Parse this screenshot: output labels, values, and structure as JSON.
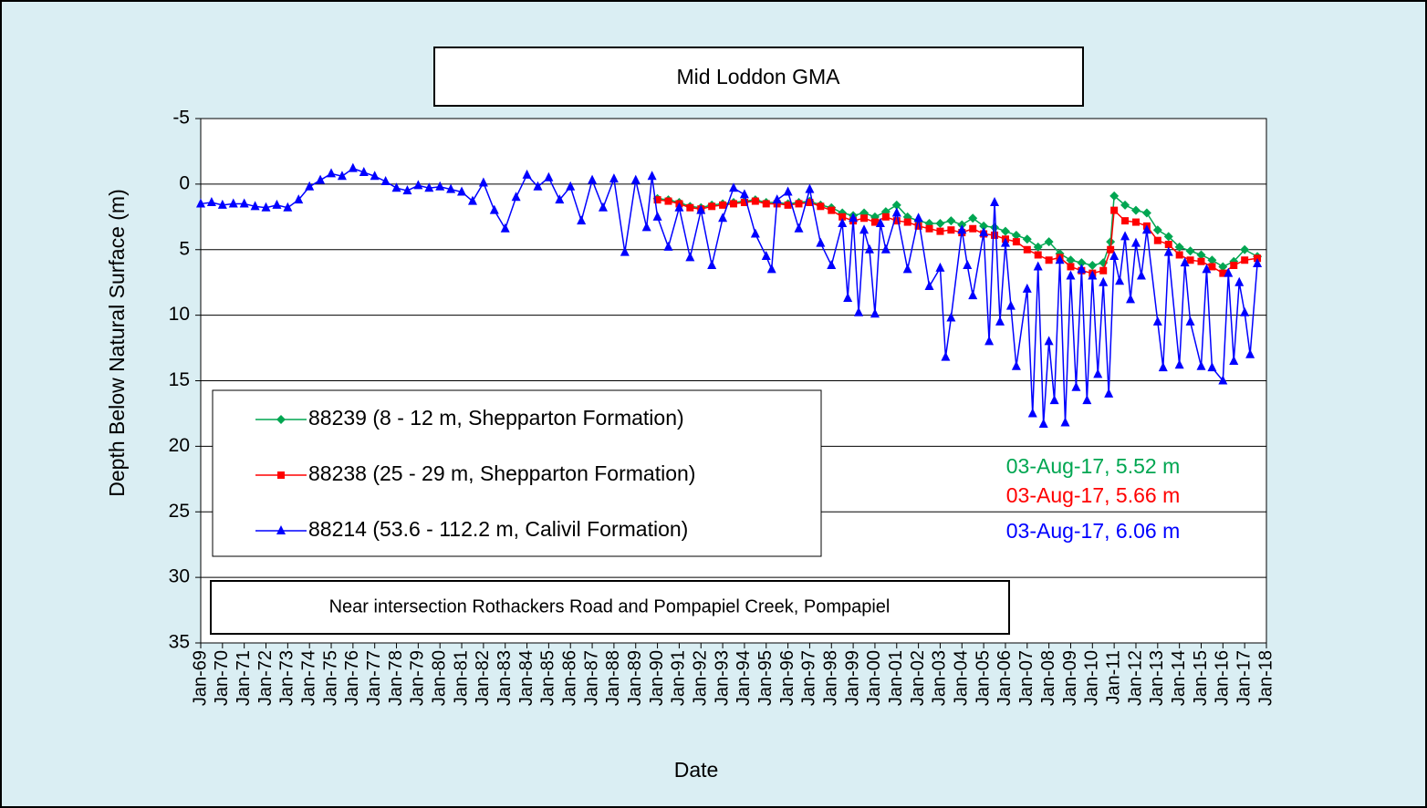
{
  "chart_data": {
    "type": "line",
    "title": "Mid Loddon GMA",
    "subtitle": "Near intersection Rothackers Road and Pompapiel Creek, Pompapiel",
    "x_label": "Date",
    "y_label": "Depth Below Natural Surface (m)",
    "ylim": [
      -5,
      35
    ],
    "y_inverted": true,
    "yticks": [
      -5,
      0,
      5,
      10,
      15,
      20,
      25,
      30,
      35
    ],
    "grid": true,
    "xlim": [
      "1969-01",
      "2018-01"
    ],
    "xticks": [
      {
        "value": "1969-01",
        "label": "Jan-69"
      },
      {
        "value": "1970-01",
        "label": "Jan-70"
      },
      {
        "value": "1971-01",
        "label": "Jan-71"
      },
      {
        "value": "1972-01",
        "label": "Jan-72"
      },
      {
        "value": "1973-01",
        "label": "Jan-73"
      },
      {
        "value": "1974-01",
        "label": "Jan-74"
      },
      {
        "value": "1975-01",
        "label": "Jan-75"
      },
      {
        "value": "1976-01",
        "label": "Jan-76"
      },
      {
        "value": "1977-01",
        "label": "Jan-77"
      },
      {
        "value": "1978-01",
        "label": "Jan-78"
      },
      {
        "value": "1979-01",
        "label": "Jan-79"
      },
      {
        "value": "1980-01",
        "label": "Jan-80"
      },
      {
        "value": "1981-01",
        "label": "Jan-81"
      },
      {
        "value": "1982-01",
        "label": "Jan-82"
      },
      {
        "value": "1983-01",
        "label": "Jan-83"
      },
      {
        "value": "1984-01",
        "label": "Jan-84"
      },
      {
        "value": "1985-01",
        "label": "Jan-85"
      },
      {
        "value": "1986-01",
        "label": "Jan-86"
      },
      {
        "value": "1987-01",
        "label": "Jan-87"
      },
      {
        "value": "1988-01",
        "label": "Jan-88"
      },
      {
        "value": "1989-01",
        "label": "Jan-89"
      },
      {
        "value": "1990-01",
        "label": "Jan-90"
      },
      {
        "value": "1991-01",
        "label": "Jan-91"
      },
      {
        "value": "1992-01",
        "label": "Jan-92"
      },
      {
        "value": "1993-01",
        "label": "Jan-93"
      },
      {
        "value": "1994-01",
        "label": "Jan-94"
      },
      {
        "value": "1995-01",
        "label": "Jan-95"
      },
      {
        "value": "1996-01",
        "label": "Jan-96"
      },
      {
        "value": "1997-01",
        "label": "Jan-97"
      },
      {
        "value": "1998-01",
        "label": "Jan-98"
      },
      {
        "value": "1999-01",
        "label": "Jan-99"
      },
      {
        "value": "2000-01",
        "label": "Jan-00"
      },
      {
        "value": "2001-01",
        "label": "Jan-01"
      },
      {
        "value": "2002-01",
        "label": "Jan-02"
      },
      {
        "value": "2003-01",
        "label": "Jan-03"
      },
      {
        "value": "2004-01",
        "label": "Jan-04"
      },
      {
        "value": "2005-01",
        "label": "Jan-05"
      },
      {
        "value": "2006-01",
        "label": "Jan-06"
      },
      {
        "value": "2007-01",
        "label": "Jan-07"
      },
      {
        "value": "2008-01",
        "label": "Jan-08"
      },
      {
        "value": "2009-01",
        "label": "Jan-09"
      },
      {
        "value": "2010-01",
        "label": "Jan-10"
      },
      {
        "value": "2011-01",
        "label": "Jan-11"
      },
      {
        "value": "2012-01",
        "label": "Jan-12"
      },
      {
        "value": "2013-01",
        "label": "Jan-13"
      },
      {
        "value": "2014-01",
        "label": "Jan-14"
      },
      {
        "value": "2015-01",
        "label": "Jan-15"
      },
      {
        "value": "2016-01",
        "label": "Jan-16"
      },
      {
        "value": "2017-01",
        "label": "Jan-17"
      },
      {
        "value": "2018-01",
        "label": "Jan-18"
      }
    ],
    "series": [
      {
        "name": "88239 (8 - 12 m, Shepparton Formation)",
        "color": "#00a651",
        "marker": "diamond",
        "x": [
          "1990-01",
          "1990-07",
          "1991-01",
          "1991-07",
          "1992-01",
          "1992-07",
          "1993-01",
          "1993-07",
          "1994-01",
          "1994-07",
          "1995-01",
          "1995-07",
          "1996-01",
          "1996-07",
          "1997-01",
          "1997-07",
          "1998-01",
          "1998-07",
          "1999-01",
          "1999-07",
          "2000-01",
          "2000-07",
          "2001-01",
          "2001-07",
          "2002-01",
          "2002-07",
          "2003-01",
          "2003-07",
          "2004-01",
          "2004-07",
          "2005-01",
          "2005-07",
          "2006-01",
          "2006-07",
          "2007-01",
          "2007-07",
          "2008-01",
          "2008-07",
          "2009-01",
          "2009-07",
          "2010-01",
          "2010-07",
          "2010-11",
          "2011-01",
          "2011-07",
          "2012-01",
          "2012-07",
          "2013-01",
          "2013-07",
          "2014-01",
          "2014-07",
          "2015-01",
          "2015-07",
          "2016-01",
          "2016-07",
          "2017-01",
          "2017-08"
        ],
        "values": [
          1.1,
          1.2,
          1.4,
          1.7,
          1.8,
          1.6,
          1.5,
          1.4,
          1.3,
          1.2,
          1.4,
          1.4,
          1.5,
          1.4,
          1.3,
          1.6,
          1.8,
          2.2,
          2.4,
          2.2,
          2.5,
          2.1,
          1.6,
          2.5,
          2.8,
          3.0,
          3.0,
          2.8,
          3.1,
          2.6,
          3.2,
          3.3,
          3.6,
          3.9,
          4.2,
          4.8,
          4.4,
          5.3,
          5.8,
          6.0,
          6.2,
          6.0,
          4.4,
          0.9,
          1.6,
          2.0,
          2.2,
          3.5,
          4.0,
          4.8,
          5.1,
          5.4,
          5.8,
          6.3,
          5.9,
          5.0,
          5.52
        ]
      },
      {
        "name": "88238 (25 - 29 m, Shepparton Formation)",
        "color": "#ff0000",
        "marker": "square",
        "x": [
          "1990-01",
          "1990-07",
          "1991-01",
          "1991-07",
          "1992-01",
          "1992-07",
          "1993-01",
          "1993-07",
          "1994-01",
          "1994-07",
          "1995-01",
          "1995-07",
          "1996-01",
          "1996-07",
          "1997-01",
          "1997-07",
          "1998-01",
          "1998-07",
          "1999-01",
          "1999-07",
          "2000-01",
          "2000-07",
          "2001-01",
          "2001-07",
          "2002-01",
          "2002-07",
          "2003-01",
          "2003-07",
          "2004-01",
          "2004-07",
          "2005-01",
          "2005-07",
          "2006-01",
          "2006-07",
          "2007-01",
          "2007-07",
          "2008-01",
          "2008-07",
          "2009-01",
          "2009-07",
          "2010-01",
          "2010-07",
          "2010-11",
          "2011-01",
          "2011-07",
          "2012-01",
          "2012-07",
          "2013-01",
          "2013-07",
          "2014-01",
          "2014-07",
          "2015-01",
          "2015-07",
          "2016-01",
          "2016-07",
          "2017-01",
          "2017-08"
        ],
        "values": [
          1.2,
          1.3,
          1.5,
          1.8,
          1.9,
          1.7,
          1.6,
          1.5,
          1.4,
          1.3,
          1.5,
          1.5,
          1.6,
          1.5,
          1.4,
          1.7,
          2.0,
          2.5,
          2.8,
          2.6,
          2.9,
          2.5,
          2.8,
          2.9,
          3.2,
          3.4,
          3.6,
          3.5,
          3.7,
          3.4,
          3.8,
          3.9,
          4.2,
          4.4,
          5.0,
          5.4,
          5.8,
          5.6,
          6.3,
          6.6,
          6.8,
          6.6,
          5.0,
          2.0,
          2.8,
          2.9,
          3.2,
          4.3,
          4.6,
          5.4,
          5.8,
          5.9,
          6.3,
          6.8,
          6.2,
          5.8,
          5.66
        ]
      },
      {
        "name": "88214 (53.6 - 112.2 m, Calivil Formation)",
        "color": "#0000ff",
        "marker": "triangle",
        "x": [
          "1969-01",
          "1969-07",
          "1970-01",
          "1970-07",
          "1971-01",
          "1971-07",
          "1972-01",
          "1972-07",
          "1973-01",
          "1973-07",
          "1974-01",
          "1974-07",
          "1975-01",
          "1975-07",
          "1976-01",
          "1976-07",
          "1977-01",
          "1977-07",
          "1978-01",
          "1978-07",
          "1979-01",
          "1979-07",
          "1980-01",
          "1980-07",
          "1981-01",
          "1981-07",
          "1982-01",
          "1982-07",
          "1983-01",
          "1983-07",
          "1984-01",
          "1984-07",
          "1985-01",
          "1985-07",
          "1986-01",
          "1986-07",
          "1987-01",
          "1987-07",
          "1988-01",
          "1988-07",
          "1989-01",
          "1989-07",
          "1989-10",
          "1990-01",
          "1990-07",
          "1991-01",
          "1991-07",
          "1992-01",
          "1992-07",
          "1993-01",
          "1993-07",
          "1994-01",
          "1994-07",
          "1995-01",
          "1995-04",
          "1995-07",
          "1996-01",
          "1996-07",
          "1997-01",
          "1997-07",
          "1998-01",
          "1998-07",
          "1998-10",
          "1999-01",
          "1999-04",
          "1999-07",
          "1999-10",
          "2000-01",
          "2000-04",
          "2000-07",
          "2001-01",
          "2001-07",
          "2002-01",
          "2002-07",
          "2003-01",
          "2003-04",
          "2003-07",
          "2004-01",
          "2004-04",
          "2004-07",
          "2005-01",
          "2005-04",
          "2005-07",
          "2005-10",
          "2006-01",
          "2006-04",
          "2006-07",
          "2007-01",
          "2007-04",
          "2007-07",
          "2007-10",
          "2008-01",
          "2008-04",
          "2008-07",
          "2008-10",
          "2009-01",
          "2009-04",
          "2009-07",
          "2009-10",
          "2010-01",
          "2010-04",
          "2010-07",
          "2010-10",
          "2011-01",
          "2011-04",
          "2011-07",
          "2011-10",
          "2012-01",
          "2012-04",
          "2012-07",
          "2013-01",
          "2013-04",
          "2013-07",
          "2014-01",
          "2014-04",
          "2014-07",
          "2015-01",
          "2015-04",
          "2015-07",
          "2016-01",
          "2016-04",
          "2016-07",
          "2016-10",
          "2017-01",
          "2017-04",
          "2017-08"
        ],
        "values": [
          1.5,
          1.4,
          1.6,
          1.5,
          1.5,
          1.7,
          1.8,
          1.6,
          1.8,
          1.2,
          0.2,
          -0.3,
          -0.8,
          -0.6,
          -1.2,
          -0.9,
          -0.6,
          -0.2,
          0.3,
          0.5,
          0.1,
          0.3,
          0.2,
          0.4,
          0.6,
          1.3,
          -0.1,
          2.0,
          3.4,
          1.0,
          -0.7,
          0.2,
          -0.5,
          1.2,
          0.2,
          2.8,
          -0.3,
          1.8,
          -0.4,
          5.2,
          -0.3,
          3.3,
          -0.6,
          2.5,
          4.8,
          1.8,
          5.6,
          2.0,
          6.2,
          2.6,
          0.3,
          0.8,
          3.8,
          5.5,
          6.5,
          1.2,
          0.6,
          3.4,
          0.4,
          4.5,
          6.2,
          3.0,
          8.7,
          2.6,
          9.8,
          3.5,
          5.0,
          9.9,
          3.0,
          5.0,
          2.2,
          6.5,
          2.6,
          7.8,
          6.4,
          13.2,
          10.2,
          3.5,
          6.2,
          8.5,
          3.7,
          12.0,
          1.4,
          10.5,
          4.5,
          9.3,
          13.9,
          8.0,
          17.5,
          6.3,
          18.3,
          12.0,
          16.5,
          5.8,
          18.2,
          7.0,
          15.5,
          6.5,
          16.5,
          7.0,
          14.5,
          7.5,
          16.0,
          5.5,
          7.4,
          4.0,
          8.8,
          4.5,
          7.0,
          3.5,
          10.5,
          14.0,
          5.2,
          13.8,
          6.0,
          10.5,
          13.9,
          6.5,
          14.0,
          15.0,
          6.8,
          13.5,
          7.5,
          9.8,
          13.0,
          6.06
        ]
      }
    ],
    "annotations": [
      {
        "text": "03-Aug-17,  5.52 m",
        "color": "#00a651"
      },
      {
        "text": "03-Aug-17,  5.66 m",
        "color": "#ff0000"
      },
      {
        "text": "03-Aug-17,  6.06 m",
        "color": "#0000ff"
      }
    ]
  }
}
